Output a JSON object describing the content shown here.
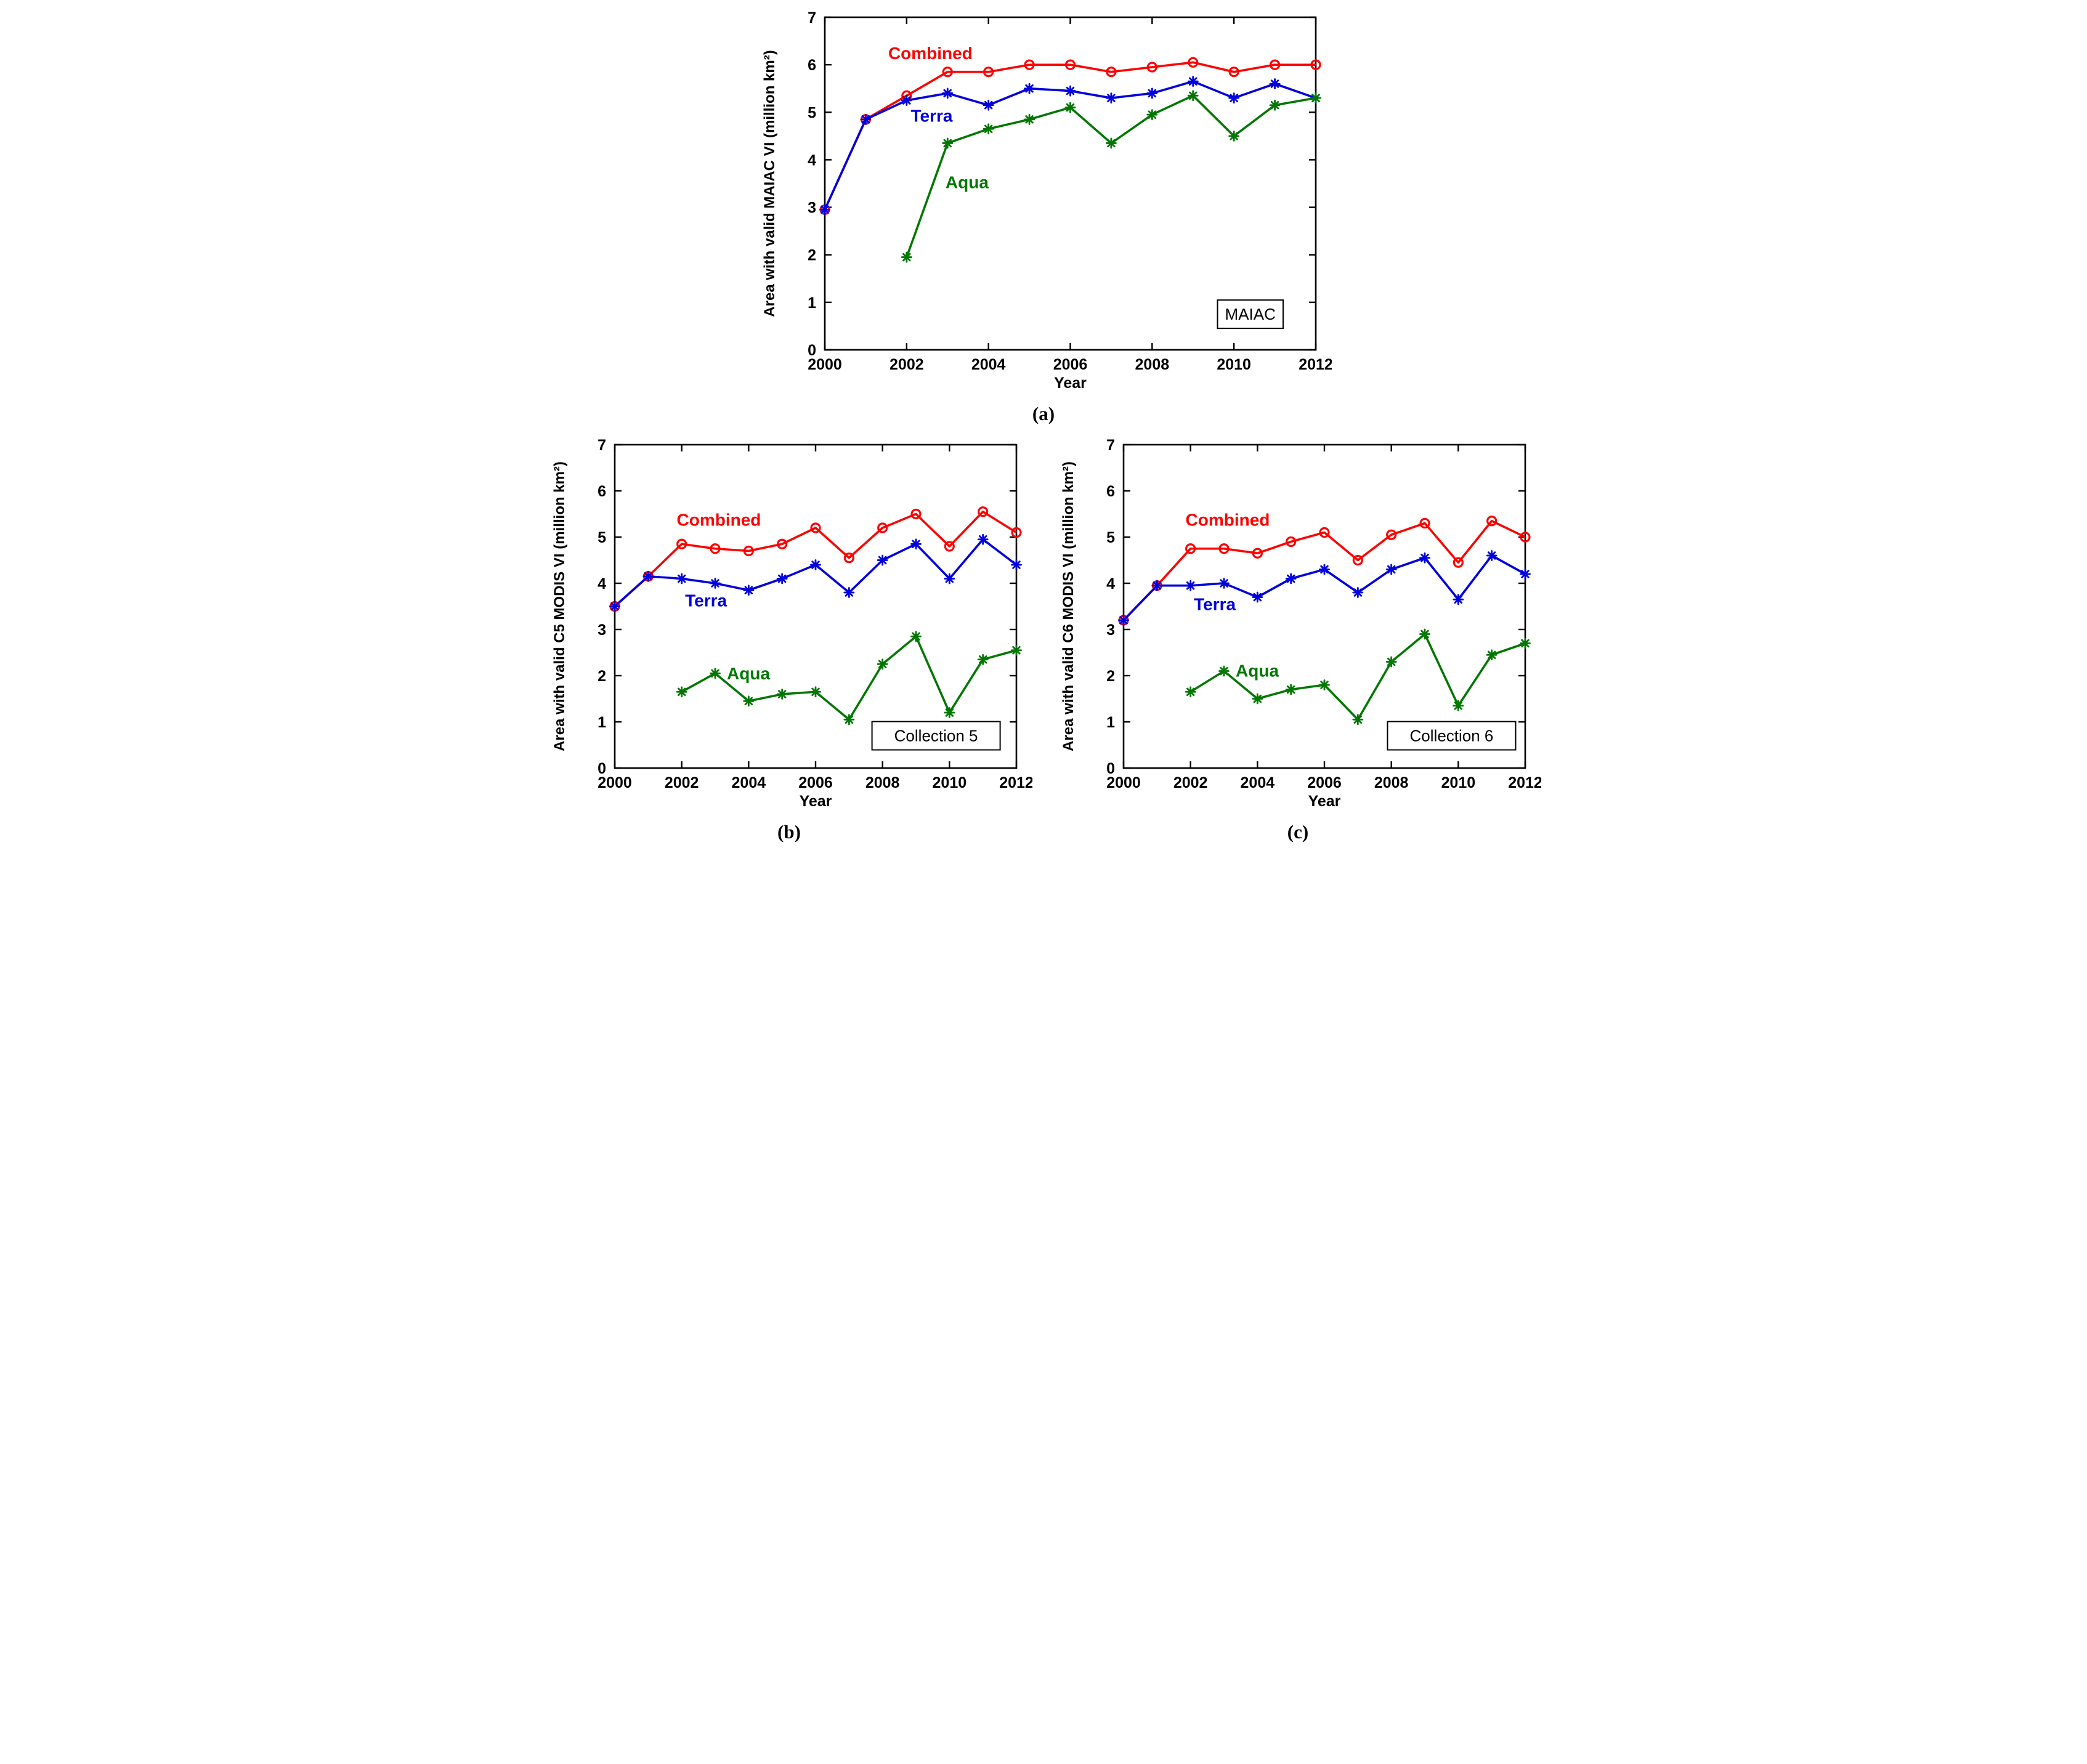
{
  "captions": {
    "a": "(a)",
    "b": "(b)",
    "c": "(c)"
  },
  "colors": {
    "combined": "#ff0000",
    "terra": "#0000dd",
    "aqua": "#007700"
  },
  "chart_data": [
    {
      "id": "a",
      "type": "line",
      "xlabel": "Year",
      "ylabel": "Area with valid MAIAC VI (million km²)",
      "box_label": "MAIAC",
      "box_label_pos": [
        2010.4,
        0.75
      ],
      "xlim": [
        2000,
        2012
      ],
      "ylim": [
        0,
        7
      ],
      "xticks": [
        2000,
        2002,
        2004,
        2006,
        2008,
        2010,
        2012
      ],
      "yticks": [
        0,
        1,
        2,
        3,
        4,
        5,
        6,
        7
      ],
      "grid": false,
      "legend_position": "inline-labels",
      "series": [
        {
          "name": "Combined",
          "color": "#ff0000",
          "marker": "circle",
          "label_pos": [
            2001.55,
            6.12
          ],
          "x": [
            2000,
            2001,
            2002,
            2003,
            2004,
            2005,
            2006,
            2007,
            2008,
            2009,
            2010,
            2011,
            2012
          ],
          "values": [
            2.95,
            4.85,
            5.35,
            5.85,
            5.85,
            6.0,
            6.0,
            5.85,
            5.95,
            6.05,
            5.85,
            6.0,
            6.0
          ]
        },
        {
          "name": "Terra",
          "color": "#0000dd",
          "marker": "asterisk",
          "label_pos": [
            2002.1,
            4.8
          ],
          "x": [
            2000,
            2001,
            2002,
            2003,
            2004,
            2005,
            2006,
            2007,
            2008,
            2009,
            2010,
            2011,
            2012
          ],
          "values": [
            2.95,
            4.85,
            5.25,
            5.4,
            5.15,
            5.5,
            5.45,
            5.3,
            5.4,
            5.65,
            5.3,
            5.6,
            5.3
          ]
        },
        {
          "name": "Aqua",
          "color": "#007700",
          "marker": "asterisk",
          "label_pos": [
            2002.95,
            3.4
          ],
          "x": [
            2002,
            2003,
            2004,
            2005,
            2006,
            2007,
            2008,
            2009,
            2010,
            2011,
            2012
          ],
          "values": [
            1.95,
            4.35,
            4.65,
            4.85,
            5.1,
            4.35,
            4.95,
            5.35,
            4.5,
            5.15,
            5.3
          ]
        }
      ]
    },
    {
      "id": "b",
      "type": "line",
      "xlabel": "Year",
      "ylabel": "Area with valid C5 MODIS VI (million km²)",
      "box_label": "Collection 5",
      "box_label_pos": [
        2009.6,
        0.7
      ],
      "xlim": [
        2000,
        2012
      ],
      "ylim": [
        0,
        7
      ],
      "xticks": [
        2000,
        2002,
        2004,
        2006,
        2008,
        2010,
        2012
      ],
      "yticks": [
        0,
        1,
        2,
        3,
        4,
        5,
        6,
        7
      ],
      "grid": false,
      "legend_position": "inline-labels",
      "series": [
        {
          "name": "Combined",
          "color": "#ff0000",
          "marker": "circle",
          "label_pos": [
            2001.85,
            5.25
          ],
          "x": [
            2000,
            2001,
            2002,
            2003,
            2004,
            2005,
            2006,
            2007,
            2008,
            2009,
            2010,
            2011,
            2012
          ],
          "values": [
            3.5,
            4.15,
            4.85,
            4.75,
            4.7,
            4.85,
            5.2,
            4.55,
            5.2,
            5.5,
            4.8,
            5.55,
            5.1
          ]
        },
        {
          "name": "Terra",
          "color": "#0000dd",
          "marker": "asterisk",
          "label_pos": [
            2002.1,
            3.5
          ],
          "x": [
            2000,
            2001,
            2002,
            2003,
            2004,
            2005,
            2006,
            2007,
            2008,
            2009,
            2010,
            2011,
            2012
          ],
          "values": [
            3.5,
            4.15,
            4.1,
            4.0,
            3.85,
            4.1,
            4.4,
            3.8,
            4.5,
            4.85,
            4.1,
            4.95,
            4.4
          ]
        },
        {
          "name": "Aqua",
          "color": "#007700",
          "marker": "asterisk",
          "label_pos": [
            2003.35,
            1.92
          ],
          "x": [
            2002,
            2003,
            2004,
            2005,
            2006,
            2007,
            2008,
            2009,
            2010,
            2011,
            2012
          ],
          "values": [
            1.65,
            2.05,
            1.45,
            1.6,
            1.65,
            1.05,
            2.25,
            2.85,
            1.2,
            2.35,
            2.55
          ]
        }
      ]
    },
    {
      "id": "c",
      "type": "line",
      "xlabel": "Year",
      "ylabel": "Area with valid C6 MODIS VI (million km²)",
      "box_label": "Collection 6",
      "box_label_pos": [
        2009.8,
        0.7
      ],
      "xlim": [
        2000,
        2012
      ],
      "ylim": [
        0,
        7
      ],
      "xticks": [
        2000,
        2002,
        2004,
        2006,
        2008,
        2010,
        2012
      ],
      "yticks": [
        0,
        1,
        2,
        3,
        4,
        5,
        6,
        7
      ],
      "grid": false,
      "legend_position": "inline-labels",
      "series": [
        {
          "name": "Combined",
          "color": "#ff0000",
          "marker": "circle",
          "label_pos": [
            2001.85,
            5.25
          ],
          "x": [
            2000,
            2001,
            2002,
            2003,
            2004,
            2005,
            2006,
            2007,
            2008,
            2009,
            2010,
            2011,
            2012
          ],
          "values": [
            3.2,
            3.95,
            4.75,
            4.75,
            4.65,
            4.9,
            5.1,
            4.5,
            5.05,
            5.3,
            4.45,
            5.35,
            5.0
          ]
        },
        {
          "name": "Terra",
          "color": "#0000dd",
          "marker": "asterisk",
          "label_pos": [
            2002.1,
            3.42
          ],
          "x": [
            2000,
            2001,
            2002,
            2003,
            2004,
            2005,
            2006,
            2007,
            2008,
            2009,
            2010,
            2011,
            2012
          ],
          "values": [
            3.2,
            3.95,
            3.95,
            4.0,
            3.7,
            4.1,
            4.3,
            3.8,
            4.3,
            4.55,
            3.65,
            4.6,
            4.2
          ]
        },
        {
          "name": "Aqua",
          "color": "#007700",
          "marker": "asterisk",
          "label_pos": [
            2003.35,
            1.98
          ],
          "x": [
            2002,
            2003,
            2004,
            2005,
            2006,
            2007,
            2008,
            2009,
            2010,
            2011,
            2012
          ],
          "values": [
            1.65,
            2.1,
            1.5,
            1.7,
            1.8,
            1.05,
            2.3,
            2.9,
            1.35,
            2.45,
            2.7
          ]
        }
      ]
    }
  ]
}
